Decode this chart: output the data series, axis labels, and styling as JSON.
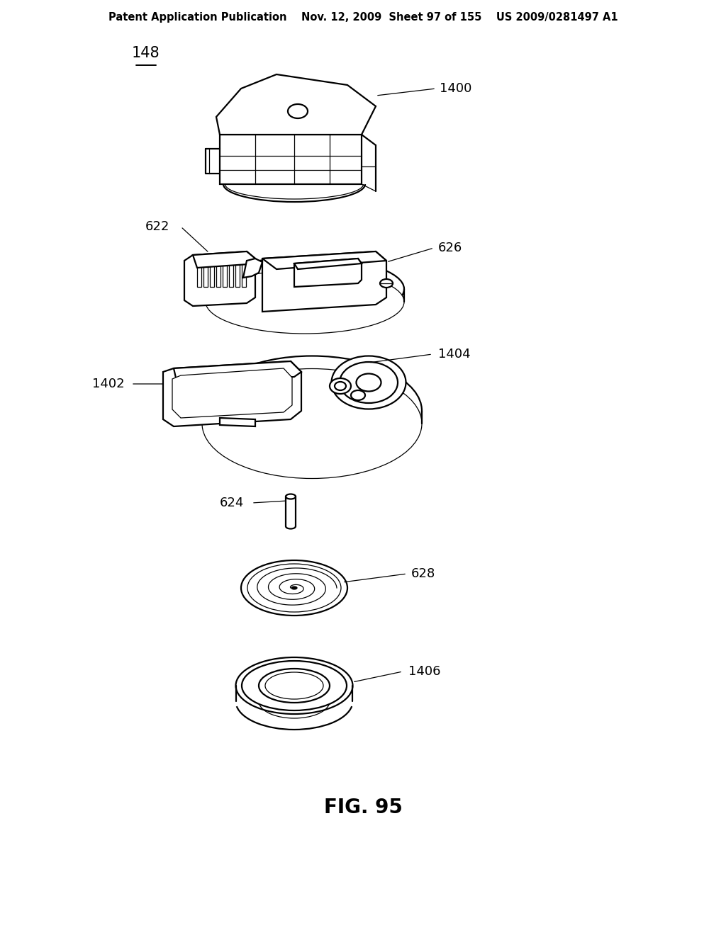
{
  "title": "FIG. 95",
  "header": "Patent Application Publication    Nov. 12, 2009  Sheet 97 of 155    US 2009/0281497 A1",
  "fig_label": "148",
  "background_color": "#ffffff",
  "lc": "#000000",
  "lw_main": 1.6,
  "lw_thin": 0.9,
  "lw_thick": 2.2,
  "comp1_label": "1400",
  "comp2a_label": "622",
  "comp2b_label": "626",
  "comp3a_label": "1402",
  "comp3b_label": "1404",
  "comp4_label": "624",
  "comp5_label": "628",
  "comp6_label": "1406"
}
